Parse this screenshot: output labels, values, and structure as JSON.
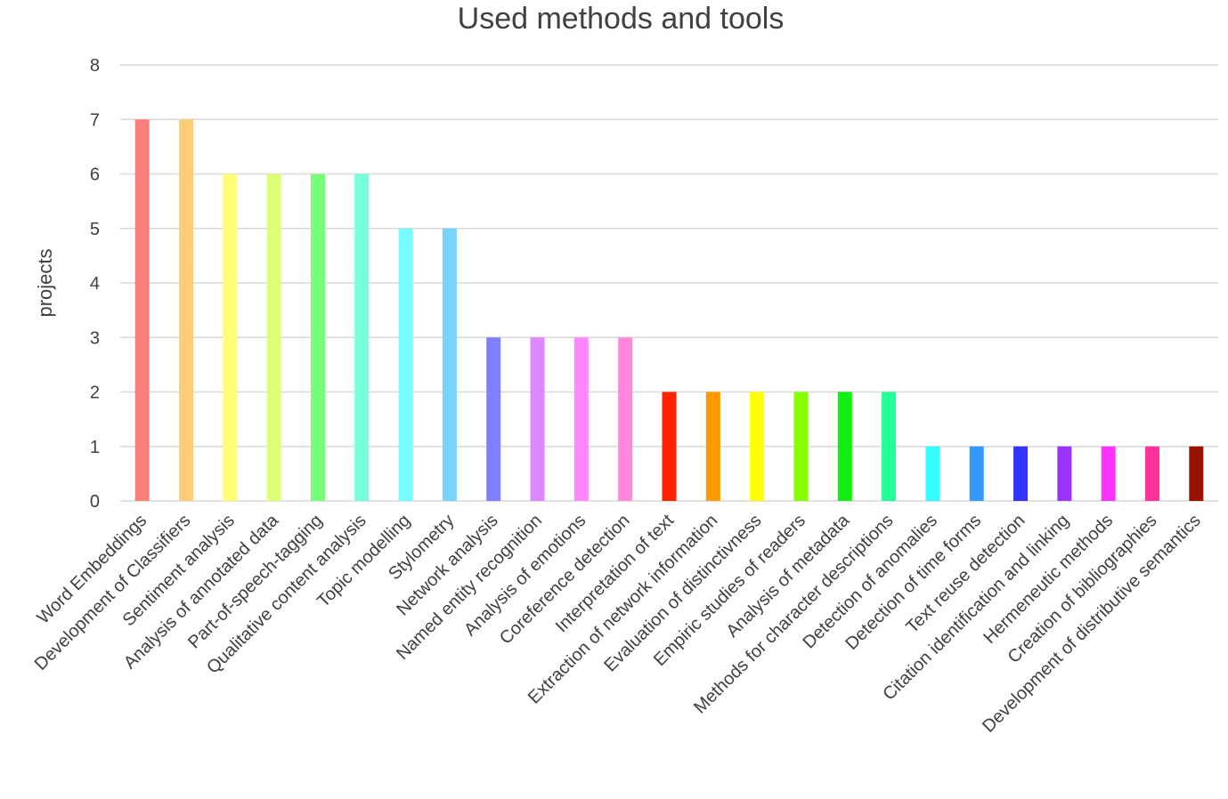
{
  "chart_data": {
    "type": "bar",
    "title": "Used methods and tools",
    "xlabel": "",
    "ylabel": "projects",
    "ylim": [
      0,
      8
    ],
    "yticks": [
      0,
      1,
      2,
      3,
      4,
      5,
      6,
      7,
      8
    ],
    "grid": true,
    "legend": "none",
    "categories": [
      "Word Embeddings",
      "Development of Classifiers",
      "Sentiment analysis",
      "Analysis of annotated data",
      "Part-of-speech-tagging",
      "Qualitative content analysis",
      "Topic modelling",
      "Stylometry",
      "Network analysis",
      "Named entity recognition",
      "Analysis of emotions",
      "Coreference detection",
      "Interpretation of text",
      "Extraction of network information",
      "Evaluation of distinctivness",
      "Empiric studies of readers",
      "Analysis of metadata",
      "Methods for character descriptions",
      "Detection of anomalies",
      "Detection of time forms",
      "Text reuse detection",
      "Citation identification and linking",
      "Hermeneutic methods",
      "Creation of bibliographies",
      "Development of distributive semantics"
    ],
    "values": [
      7,
      7,
      6,
      6,
      6,
      6,
      5,
      5,
      3,
      3,
      3,
      3,
      2,
      2,
      2,
      2,
      2,
      2,
      1,
      1,
      1,
      1,
      1,
      1,
      1
    ],
    "colors": [
      "#ff7f7f",
      "#ffcc77",
      "#ffff77",
      "#ddff77",
      "#77ff77",
      "#77ffdd",
      "#77ffff",
      "#77d4ff",
      "#7f7fff",
      "#dd88ff",
      "#ff88ff",
      "#ff88dd",
      "#ff2200",
      "#ff9900",
      "#ffff00",
      "#88ff00",
      "#11ee11",
      "#22ff99",
      "#33ffff",
      "#3399ff",
      "#3333ff",
      "#9933ff",
      "#ff33ff",
      "#ff3399",
      "#991100"
    ]
  }
}
